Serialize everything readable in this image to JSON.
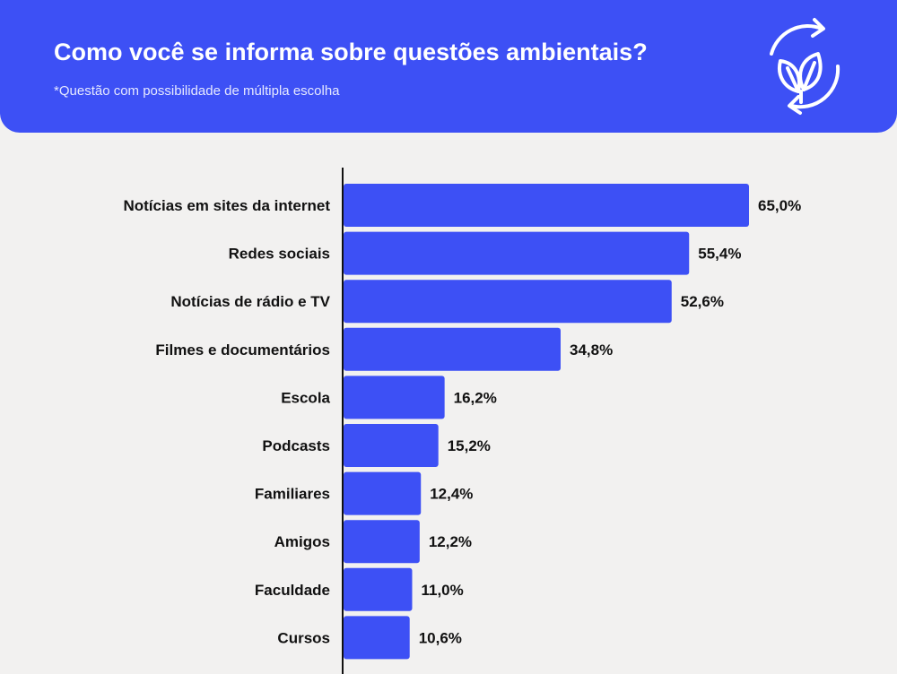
{
  "header": {
    "title": "Como você se informa sobre questões ambientais?",
    "subtitle": "*Questão com possibilidade de múltipla escolha",
    "icon": "recycle-leaf-icon"
  },
  "colors": {
    "accent": "#3d50f5",
    "background": "#f2f1f0",
    "text": "#111111"
  },
  "chart_data": {
    "type": "bar",
    "orientation": "horizontal",
    "categories": [
      "Notícias em sites da internet",
      "Redes sociais",
      "Notícias de rádio e TV",
      "Filmes e documentários",
      "Escola",
      "Podcasts",
      "Familiares",
      "Amigos",
      "Faculdade",
      "Cursos"
    ],
    "values": [
      65.0,
      55.4,
      52.6,
      34.8,
      16.2,
      15.2,
      12.4,
      12.2,
      11.0,
      10.6
    ],
    "value_labels": [
      "65,0%",
      "55,4%",
      "52,6%",
      "34,8%",
      "16,2%",
      "15,2%",
      "12,4%",
      "12,2%",
      "11,0%",
      "10,6%"
    ],
    "xlim": [
      0,
      65
    ],
    "grid": false,
    "legend": "none",
    "bar_color": "#3d50f5"
  }
}
